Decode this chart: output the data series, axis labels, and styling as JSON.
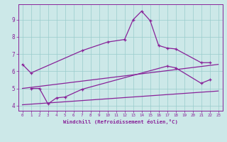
{
  "background_color": "#cce8e8",
  "grid_color": "#99cccc",
  "line_color": "#882299",
  "marker": "+",
  "xlabel": "Windchill (Refroidissement éolien,°C)",
  "xlim": [
    -0.5,
    23.5
  ],
  "ylim": [
    3.7,
    9.9
  ],
  "yticks": [
    4,
    5,
    6,
    7,
    8,
    9
  ],
  "xticks": [
    0,
    1,
    2,
    3,
    4,
    5,
    6,
    7,
    8,
    9,
    10,
    11,
    12,
    13,
    14,
    15,
    16,
    17,
    18,
    19,
    20,
    21,
    22,
    23
  ],
  "curve1_x": [
    0,
    1,
    7,
    10,
    12,
    13,
    14,
    15,
    16,
    17,
    18,
    21,
    22
  ],
  "curve1_y": [
    6.4,
    5.9,
    7.2,
    7.7,
    7.85,
    9.0,
    9.5,
    8.95,
    7.5,
    7.35,
    7.3,
    6.5,
    6.5
  ],
  "curve2_x": [
    1,
    2,
    3,
    4,
    5,
    7,
    17,
    18,
    21,
    22
  ],
  "curve2_y": [
    5.0,
    5.0,
    4.1,
    4.45,
    4.5,
    4.95,
    6.3,
    6.2,
    5.3,
    5.5
  ],
  "line1_x": [
    0,
    23
  ],
  "line1_y": [
    5.0,
    6.4
  ],
  "line2_x": [
    0,
    23
  ],
  "line2_y": [
    4.05,
    4.85
  ]
}
